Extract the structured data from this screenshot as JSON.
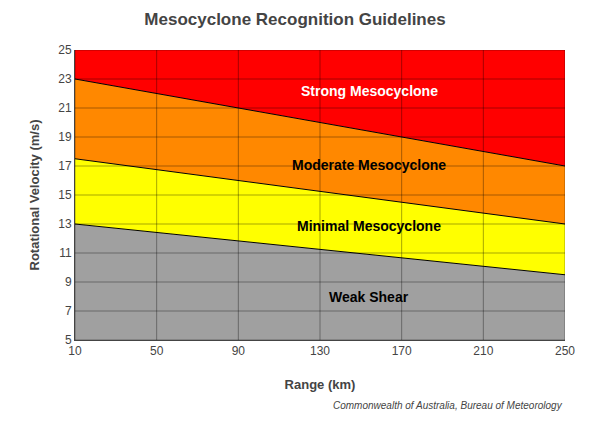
{
  "chart_data": {
    "type": "area",
    "title": "Mesocyclone Recognition Guidelines",
    "xlabel": "Range (km)",
    "ylabel": "Rotational Velocity (m/s)",
    "x": [
      10,
      250
    ],
    "boundaries": [
      {
        "values": [
          13.0,
          9.5
        ]
      },
      {
        "values": [
          17.5,
          13.0
        ]
      },
      {
        "values": [
          23.0,
          17.0
        ]
      }
    ],
    "zones": [
      {
        "name": "Weak Shear",
        "color": "#A0A0A0"
      },
      {
        "name": "Minimal Mesocyclone",
        "color": "#FFFF00"
      },
      {
        "name": "Moderate Mesocyclone",
        "color": "#FF8800"
      },
      {
        "name": "Strong Mesocyclone",
        "color": "#FF0000"
      }
    ],
    "xlim": [
      10,
      250
    ],
    "ylim": [
      5,
      25
    ],
    "xticks": [
      10,
      50,
      90,
      130,
      170,
      210,
      250
    ],
    "yticks": [
      5,
      7,
      9,
      11,
      13,
      15,
      17,
      19,
      21,
      23,
      25
    ],
    "grid": true,
    "footnote": "Commonwealth of Australia, Bureau of Meteorology"
  }
}
